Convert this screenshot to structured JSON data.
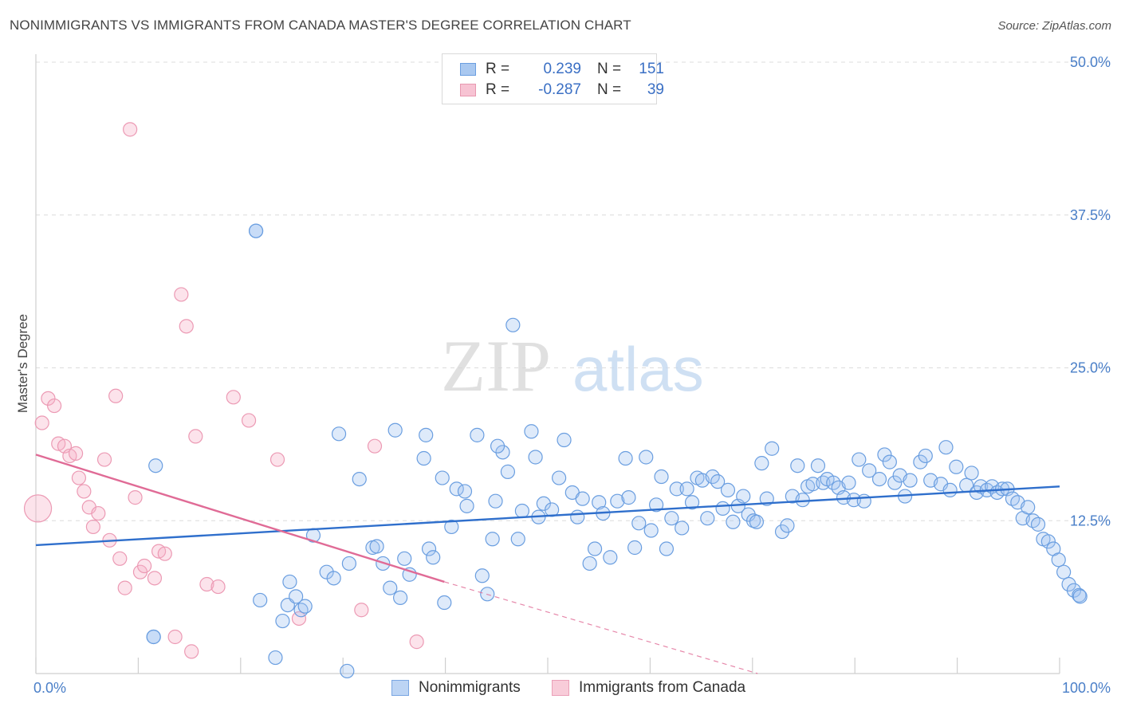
{
  "title": "NONIMMIGRANTS VS IMMIGRANTS FROM CANADA MASTER'S DEGREE CORRELATION CHART",
  "source": "Source: ZipAtlas.com",
  "watermark": {
    "zip": "ZIP",
    "atlas": "atlas"
  },
  "legend": {
    "rows": [
      {
        "r_label": "R =",
        "r_value": "0.239",
        "n_label": "N =",
        "n_value": "151",
        "color": "#a9c8f0",
        "border": "#6a9ee0"
      },
      {
        "r_label": "R =",
        "r_value": "-0.287",
        "n_label": "N =",
        "n_value": "39",
        "color": "#f7c3d3",
        "border": "#e898b0"
      }
    ]
  },
  "colors": {
    "blue_fill": "rgba(160,195,240,0.35)",
    "blue_stroke": "#6a9ee0",
    "blue_line": "#2f6fcc",
    "pink_fill": "rgba(245,175,198,0.35)",
    "pink_stroke": "#ec9ab4",
    "pink_line": "#e06b96",
    "grid": "#dcdcdc",
    "tick_text": "#4a7fc8"
  },
  "chart_data": {
    "type": "scatter",
    "xlabel": "",
    "ylabel": "Master's Degree",
    "xlim": [
      0,
      100
    ],
    "ylim": [
      0,
      50
    ],
    "x_tick_labels": [
      {
        "v": 0,
        "label": "0.0%"
      },
      {
        "v": 100,
        "label": "100.0%"
      }
    ],
    "y_tick_labels": [
      {
        "v": 12.5,
        "label": "12.5%"
      },
      {
        "v": 25.0,
        "label": "25.0%"
      },
      {
        "v": 37.5,
        "label": "37.5%"
      },
      {
        "v": 50.0,
        "label": "50.0%"
      }
    ],
    "grid": "horizontal-dashed",
    "legend_position": "bottom",
    "series": [
      {
        "name": "Nonimmigrants",
        "trend": {
          "x0": 0,
          "y0": 10.5,
          "x1": 100,
          "y1": 15.3
        },
        "points": [
          [
            11.5,
            3.0
          ],
          [
            11.5,
            3.0
          ],
          [
            11.7,
            17.0
          ],
          [
            21.5,
            36.2
          ],
          [
            21.5,
            36.2
          ],
          [
            21.9,
            6.0
          ],
          [
            23.4,
            1.3
          ],
          [
            24.1,
            4.3
          ],
          [
            24.6,
            5.6
          ],
          [
            24.8,
            7.5
          ],
          [
            25.4,
            6.3
          ],
          [
            25.9,
            5.2
          ],
          [
            26.3,
            5.5
          ],
          [
            27.1,
            11.3
          ],
          [
            28.4,
            8.3
          ],
          [
            29.1,
            7.8
          ],
          [
            29.6,
            19.6
          ],
          [
            30.4,
            0.2
          ],
          [
            30.6,
            9.0
          ],
          [
            31.6,
            15.9
          ],
          [
            32.9,
            10.3
          ],
          [
            33.3,
            10.4
          ],
          [
            33.9,
            9.0
          ],
          [
            34.6,
            7.0
          ],
          [
            35.1,
            19.9
          ],
          [
            35.6,
            6.2
          ],
          [
            36.0,
            9.4
          ],
          [
            36.5,
            8.1
          ],
          [
            37.9,
            17.6
          ],
          [
            38.1,
            19.5
          ],
          [
            38.4,
            10.2
          ],
          [
            38.8,
            9.5
          ],
          [
            39.7,
            16.0
          ],
          [
            39.9,
            5.8
          ],
          [
            40.6,
            12.0
          ],
          [
            41.1,
            15.1
          ],
          [
            41.9,
            14.9
          ],
          [
            42.1,
            13.7
          ],
          [
            43.1,
            19.5
          ],
          [
            43.6,
            8.0
          ],
          [
            44.1,
            6.5
          ],
          [
            44.6,
            11.0
          ],
          [
            44.9,
            14.1
          ],
          [
            45.6,
            18.1
          ],
          [
            46.1,
            16.5
          ],
          [
            46.6,
            28.5
          ],
          [
            47.1,
            11.0
          ],
          [
            47.5,
            13.3
          ],
          [
            48.4,
            19.8
          ],
          [
            48.8,
            17.7
          ],
          [
            49.1,
            12.8
          ],
          [
            49.6,
            13.9
          ],
          [
            50.4,
            13.4
          ],
          [
            51.1,
            16.0
          ],
          [
            51.6,
            19.1
          ],
          [
            52.4,
            14.8
          ],
          [
            52.9,
            12.8
          ],
          [
            53.4,
            14.3
          ],
          [
            54.1,
            9.0
          ],
          [
            54.6,
            10.2
          ],
          [
            55.0,
            14.0
          ],
          [
            55.4,
            13.1
          ],
          [
            56.1,
            9.5
          ],
          [
            56.8,
            14.1
          ],
          [
            57.6,
            17.6
          ],
          [
            57.9,
            14.4
          ],
          [
            58.5,
            10.3
          ],
          [
            58.9,
            12.3
          ],
          [
            59.6,
            17.7
          ],
          [
            60.1,
            11.7
          ],
          [
            60.6,
            13.8
          ],
          [
            61.1,
            16.1
          ],
          [
            61.6,
            10.2
          ],
          [
            62.1,
            12.7
          ],
          [
            62.6,
            15.1
          ],
          [
            63.1,
            11.9
          ],
          [
            63.6,
            15.1
          ],
          [
            64.1,
            14.0
          ],
          [
            64.6,
            16.0
          ],
          [
            65.1,
            15.8
          ],
          [
            65.6,
            12.7
          ],
          [
            66.1,
            16.1
          ],
          [
            66.6,
            15.7
          ],
          [
            67.1,
            13.5
          ],
          [
            67.6,
            15.0
          ],
          [
            68.1,
            12.4
          ],
          [
            68.6,
            13.7
          ],
          [
            69.1,
            14.5
          ],
          [
            69.6,
            13.0
          ],
          [
            70.1,
            12.5
          ],
          [
            70.4,
            12.4
          ],
          [
            70.9,
            17.2
          ],
          [
            71.4,
            14.3
          ],
          [
            71.9,
            18.4
          ],
          [
            72.9,
            11.6
          ],
          [
            73.4,
            12.1
          ],
          [
            73.9,
            14.5
          ],
          [
            74.4,
            17.0
          ],
          [
            74.9,
            14.2
          ],
          [
            75.4,
            15.3
          ],
          [
            75.9,
            15.5
          ],
          [
            76.4,
            17.0
          ],
          [
            76.9,
            15.6
          ],
          [
            77.3,
            15.9
          ],
          [
            77.9,
            15.6
          ],
          [
            78.4,
            15.2
          ],
          [
            78.9,
            14.4
          ],
          [
            79.4,
            15.6
          ],
          [
            79.9,
            14.2
          ],
          [
            80.4,
            17.5
          ],
          [
            80.9,
            14.1
          ],
          [
            81.4,
            16.6
          ],
          [
            82.4,
            15.9
          ],
          [
            82.9,
            17.9
          ],
          [
            83.4,
            17.3
          ],
          [
            83.9,
            15.6
          ],
          [
            84.4,
            16.2
          ],
          [
            84.9,
            14.5
          ],
          [
            85.4,
            15.8
          ],
          [
            86.4,
            17.3
          ],
          [
            86.9,
            17.8
          ],
          [
            87.4,
            15.8
          ],
          [
            88.4,
            15.5
          ],
          [
            88.9,
            18.5
          ],
          [
            89.3,
            15.0
          ],
          [
            89.9,
            16.9
          ],
          [
            90.9,
            15.4
          ],
          [
            91.4,
            16.4
          ],
          [
            91.9,
            14.8
          ],
          [
            92.3,
            15.3
          ],
          [
            92.9,
            15.0
          ],
          [
            93.4,
            15.3
          ],
          [
            93.9,
            14.8
          ],
          [
            94.4,
            15.1
          ],
          [
            94.9,
            15.1
          ],
          [
            95.4,
            14.3
          ],
          [
            95.9,
            14.0
          ],
          [
            96.4,
            12.7
          ],
          [
            96.9,
            13.6
          ],
          [
            97.4,
            12.5
          ],
          [
            97.9,
            12.2
          ],
          [
            98.4,
            11.0
          ],
          [
            98.9,
            10.8
          ],
          [
            99.4,
            10.2
          ],
          [
            99.9,
            9.3
          ],
          [
            100.4,
            8.3
          ],
          [
            100.9,
            7.3
          ],
          [
            101.4,
            6.8
          ],
          [
            101.9,
            6.4
          ],
          [
            102.0,
            6.3
          ],
          [
            45.1,
            18.6
          ]
        ]
      },
      {
        "name": "Immigrants from Canada",
        "trend": {
          "x0": 0,
          "y0": 17.9,
          "x1": 39.9,
          "y1": 7.5
        },
        "trend_dashed": {
          "x0": 39.9,
          "y0": 7.5,
          "x1": 70.5,
          "y1": 0.0
        },
        "points": [
          [
            0.2,
            13.5
          ],
          [
            0.6,
            20.5
          ],
          [
            1.2,
            22.5
          ],
          [
            1.8,
            21.9
          ],
          [
            2.2,
            18.8
          ],
          [
            2.8,
            18.6
          ],
          [
            3.3,
            17.8
          ],
          [
            3.9,
            18.0
          ],
          [
            4.2,
            16.0
          ],
          [
            4.7,
            14.9
          ],
          [
            5.2,
            13.6
          ],
          [
            5.6,
            12.0
          ],
          [
            6.1,
            13.1
          ],
          [
            6.7,
            17.5
          ],
          [
            7.2,
            10.9
          ],
          [
            7.8,
            22.7
          ],
          [
            8.2,
            9.4
          ],
          [
            8.7,
            7.0
          ],
          [
            9.2,
            44.5
          ],
          [
            9.7,
            14.4
          ],
          [
            10.2,
            8.3
          ],
          [
            10.6,
            8.8
          ],
          [
            11.6,
            7.8
          ],
          [
            12.0,
            10.0
          ],
          [
            12.6,
            9.8
          ],
          [
            13.6,
            3.0
          ],
          [
            14.2,
            31.0
          ],
          [
            14.7,
            28.4
          ],
          [
            15.2,
            1.8
          ],
          [
            15.6,
            19.4
          ],
          [
            16.7,
            7.3
          ],
          [
            17.8,
            7.1
          ],
          [
            19.3,
            22.6
          ],
          [
            20.8,
            20.7
          ],
          [
            23.6,
            17.5
          ],
          [
            25.7,
            4.5
          ],
          [
            31.8,
            5.2
          ],
          [
            33.1,
            18.6
          ],
          [
            37.2,
            2.6
          ]
        ]
      }
    ]
  },
  "bottom_legend": [
    "Nonimmigrants",
    "Immigrants from Canada"
  ]
}
